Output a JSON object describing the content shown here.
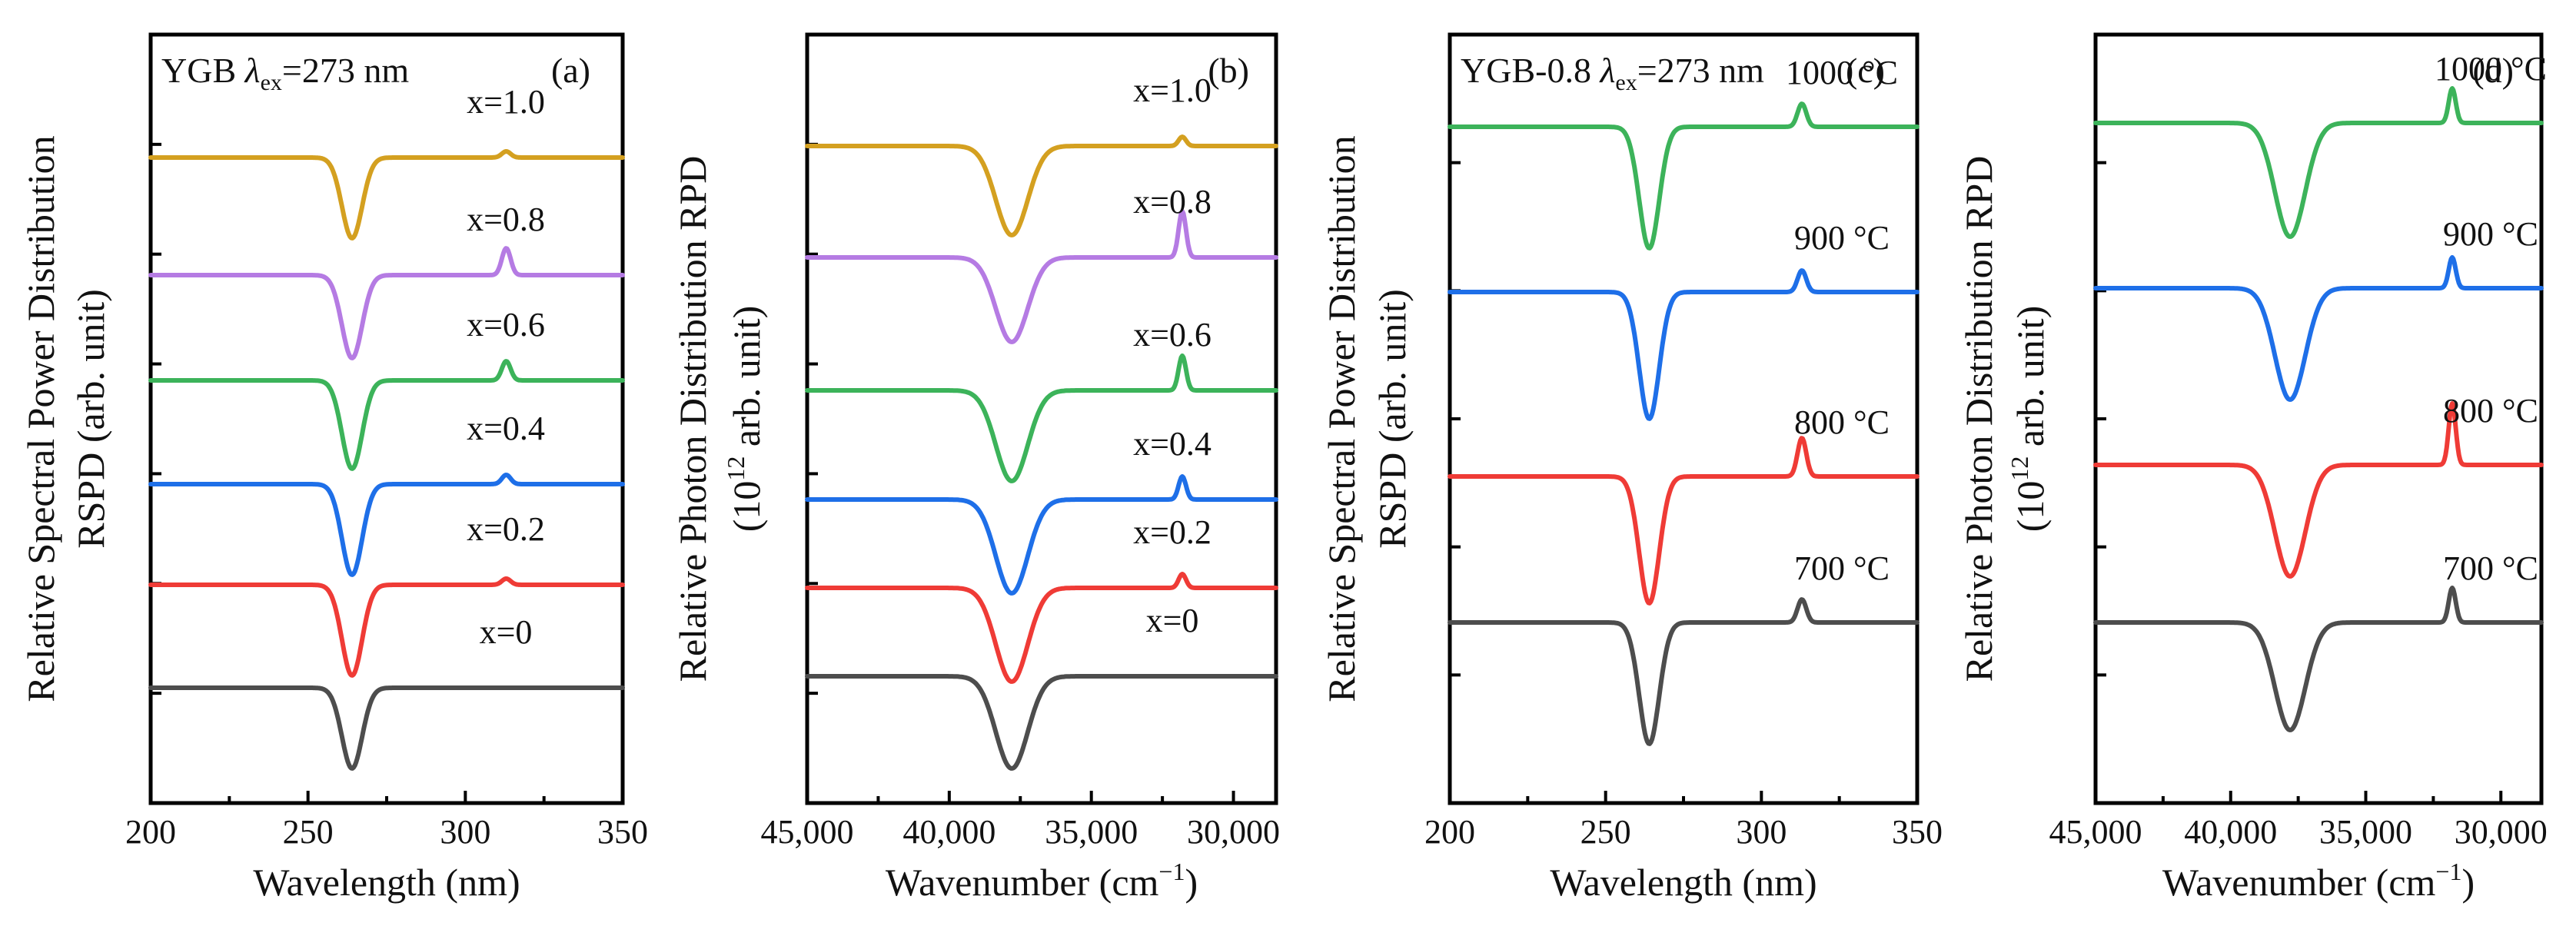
{
  "chart_data": [
    {
      "panel": "(a)",
      "type": "line",
      "header": {
        "sample": "YGB",
        "lambda": "λ",
        "lambda_sub": "ex",
        "value": "=273 nm"
      },
      "xlabel": "Wavelength (nm)",
      "ylabel_line1": "Relative Spectral Power Distribution",
      "ylabel_line2": "RSPD (arb. unit)",
      "xlim": [
        200,
        350
      ],
      "xticks": [
        200,
        250,
        300,
        350
      ],
      "xtick_labels": [
        "200",
        "250",
        "300",
        "350"
      ],
      "curve_style": "dip",
      "series": [
        {
          "name": "x=0",
          "label": "x=0",
          "color": "#4d4d4d",
          "baseline": 0.15,
          "dip_depth": 0.105,
          "peak_height": 0.0
        },
        {
          "name": "x=0.2",
          "label": "x=0.2",
          "color": "#ef3b36",
          "baseline": 0.284,
          "dip_depth": 0.118,
          "peak_height": 0.008
        },
        {
          "name": "x=0.4",
          "label": "x=0.4",
          "color": "#1e6fe8",
          "baseline": 0.415,
          "dip_depth": 0.118,
          "peak_height": 0.012
        },
        {
          "name": "x=0.6",
          "label": "x=0.6",
          "color": "#3cb35a",
          "baseline": 0.55,
          "dip_depth": 0.115,
          "peak_height": 0.025
        },
        {
          "name": "x=0.8",
          "label": "x=0.8",
          "color": "#b57be3",
          "baseline": 0.687,
          "dip_depth": 0.108,
          "peak_height": 0.035
        },
        {
          "name": "x=1.0",
          "label": "x=1.0",
          "color": "#d4a020",
          "baseline": 0.84,
          "dip_depth": 0.105,
          "peak_height": 0.008
        }
      ]
    },
    {
      "panel": "(b)",
      "type": "line",
      "xlabel": "Wavenumber (cm⁻¹)",
      "ylabel_line1": "Relative Photon Distribution RPD",
      "ylabel_line2_prefix": "(10",
      "ylabel_line2_sup": "12",
      "ylabel_line2_suffix": " arb. unit)",
      "xlim": [
        45000,
        28500
      ],
      "xticks": [
        45000,
        40000,
        35000,
        30000
      ],
      "xtick_labels": [
        "45,000",
        "40,000",
        "35,000",
        "30,000"
      ],
      "curve_style": "dip",
      "series": [
        {
          "name": "x=0",
          "label": "x=0",
          "color": "#4d4d4d",
          "baseline": 0.165,
          "dip_depth": 0.12,
          "peak_height": 0.0
        },
        {
          "name": "x=0.2",
          "label": "x=0.2",
          "color": "#ef3b36",
          "baseline": 0.28,
          "dip_depth": 0.122,
          "peak_height": 0.018
        },
        {
          "name": "x=0.4",
          "label": "x=0.4",
          "color": "#1e6fe8",
          "baseline": 0.395,
          "dip_depth": 0.122,
          "peak_height": 0.03
        },
        {
          "name": "x=0.6",
          "label": "x=0.6",
          "color": "#3cb35a",
          "baseline": 0.537,
          "dip_depth": 0.118,
          "peak_height": 0.045
        },
        {
          "name": "x=0.8",
          "label": "x=0.8",
          "color": "#b57be3",
          "baseline": 0.71,
          "dip_depth": 0.11,
          "peak_height": 0.06
        },
        {
          "name": "x=1.0",
          "label": "x=1.0",
          "color": "#d4a020",
          "baseline": 0.855,
          "dip_depth": 0.116,
          "peak_height": 0.012
        }
      ]
    },
    {
      "panel": "(c)",
      "type": "line",
      "header": {
        "sample": "YGB-0.8",
        "lambda": "λ",
        "lambda_sub": "ex",
        "value": "=273 nm"
      },
      "xlabel": "Wavelength (nm)",
      "ylabel_line1": "Relative Spectral Power Distribution",
      "ylabel_line2": "RSPD (arb. unit)",
      "xlim": [
        200,
        350
      ],
      "xticks": [
        200,
        250,
        300,
        350
      ],
      "xtick_labels": [
        "200",
        "250",
        "300",
        "350"
      ],
      "curve_style": "dip",
      "series": [
        {
          "name": "700 °C",
          "label": "700 °C",
          "color": "#4d4d4d",
          "baseline": 0.235,
          "dip_depth": 0.158,
          "peak_height": 0.03
        },
        {
          "name": "800 °C",
          "label": "800 °C",
          "color": "#ef3b36",
          "baseline": 0.425,
          "dip_depth": 0.165,
          "peak_height": 0.05
        },
        {
          "name": "900 °C",
          "label": "900 °C",
          "color": "#1e6fe8",
          "baseline": 0.665,
          "dip_depth": 0.165,
          "peak_height": 0.028
        },
        {
          "name": "1000 °C",
          "label": "1000 °C",
          "color": "#3cb35a",
          "baseline": 0.88,
          "dip_depth": 0.158,
          "peak_height": 0.03
        }
      ]
    },
    {
      "panel": "(d)",
      "type": "line",
      "xlabel": "Wavenumber (cm⁻¹)",
      "ylabel_line1": "Relative Photon Distribution RPD",
      "ylabel_line2_prefix": "(10",
      "ylabel_line2_sup": "12",
      "ylabel_line2_suffix": " arb. unit)",
      "xlim": [
        45000,
        28500
      ],
      "xticks": [
        45000,
        40000,
        35000,
        30000
      ],
      "xtick_labels": [
        "45,000",
        "40,000",
        "35,000",
        "30,000"
      ],
      "curve_style": "dip",
      "series": [
        {
          "name": "700 °C",
          "label": "700 °C",
          "color": "#4d4d4d",
          "baseline": 0.235,
          "dip_depth": 0.14,
          "peak_height": 0.045
        },
        {
          "name": "800 °C",
          "label": "800 °C",
          "color": "#ef3b36",
          "baseline": 0.44,
          "dip_depth": 0.145,
          "peak_height": 0.08
        },
        {
          "name": "900 °C",
          "label": "900 °C",
          "color": "#1e6fe8",
          "baseline": 0.67,
          "dip_depth": 0.145,
          "peak_height": 0.04
        },
        {
          "name": "1000 °C",
          "label": "1000 °C",
          "color": "#3cb35a",
          "baseline": 0.885,
          "dip_depth": 0.148,
          "peak_height": 0.045
        }
      ]
    }
  ]
}
